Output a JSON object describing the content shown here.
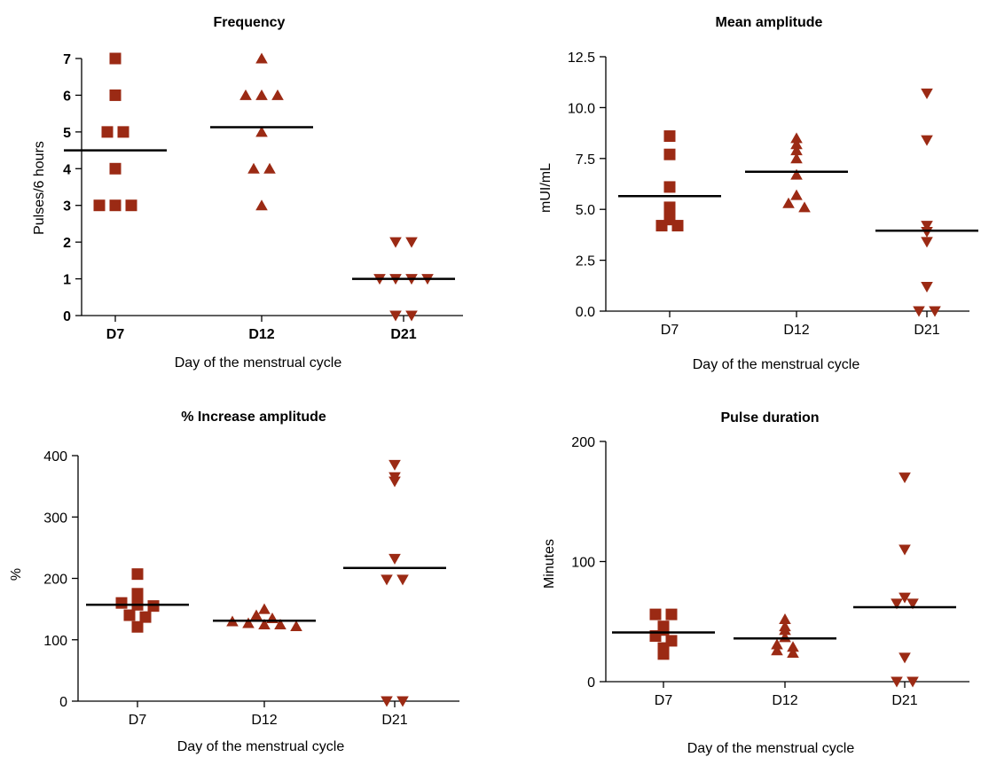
{
  "colors": {
    "marker": "#9b2a14",
    "axis": "#000000",
    "mean_line": "#000000"
  },
  "chart_data": [
    {
      "type": "scatter",
      "title": "Frequency",
      "xlabel": "Day of the menstrual cycle",
      "ylabel": "Pulses/6 hours",
      "categories": [
        "D7",
        "D12",
        "D21"
      ],
      "ylim": [
        0,
        7
      ],
      "yticks": [
        "0",
        "1",
        "2",
        "3",
        "4",
        "5",
        "6",
        "7"
      ],
      "bold_ticks": true,
      "series": [
        {
          "category": "D7",
          "marker": "square",
          "values": [
            7,
            6,
            5,
            5,
            4,
            3,
            3,
            3
          ],
          "mean": 4.5
        },
        {
          "category": "D12",
          "marker": "triangle-up",
          "values": [
            7,
            6,
            6,
            6,
            5,
            4,
            4,
            3
          ],
          "mean": 5.13
        },
        {
          "category": "D21",
          "marker": "triangle-down",
          "values": [
            2,
            2,
            1,
            1,
            1,
            1,
            0,
            0
          ],
          "mean": 1.0
        }
      ]
    },
    {
      "type": "scatter",
      "title": "Mean amplitude",
      "xlabel": "Day of the menstrual cycle",
      "ylabel": "mUI/mL",
      "categories": [
        "D7",
        "D12",
        "D21"
      ],
      "ylim": [
        0,
        12.5
      ],
      "yticks": [
        "0.0",
        "2.5",
        "5.0",
        "7.5",
        "10.0",
        "12.5"
      ],
      "bold_ticks": false,
      "series": [
        {
          "category": "D7",
          "marker": "square",
          "values": [
            8.6,
            7.7,
            6.1,
            5.1,
            4.9,
            4.5,
            4.2,
            4.2
          ],
          "mean": 5.65
        },
        {
          "category": "D12",
          "marker": "triangle-up",
          "values": [
            8.5,
            8.2,
            7.9,
            7.5,
            6.7,
            5.7,
            5.3,
            5.1
          ],
          "mean": 6.85
        },
        {
          "category": "D21",
          "marker": "triangle-down",
          "values": [
            10.7,
            8.4,
            4.2,
            3.9,
            3.4,
            1.2,
            0.0,
            0.0
          ],
          "mean": 3.95
        }
      ]
    },
    {
      "type": "scatter",
      "title": "% Increase amplitude",
      "xlabel": "Day of the menstrual cycle",
      "ylabel": "%",
      "categories": [
        "D7",
        "D12",
        "D21"
      ],
      "ylim": [
        0,
        400
      ],
      "yticks": [
        "0",
        "100",
        "200",
        "300",
        "400"
      ],
      "bold_ticks": false,
      "series": [
        {
          "category": "D7",
          "marker": "square",
          "values": [
            207,
            175,
            160,
            157,
            155,
            140,
            137,
            121
          ],
          "mean": 157
        },
        {
          "category": "D12",
          "marker": "triangle-up",
          "values": [
            150,
            140,
            135,
            130,
            127,
            125,
            125,
            122
          ],
          "mean": 131
        },
        {
          "category": "D21",
          "marker": "triangle-down",
          "values": [
            385,
            365,
            358,
            232,
            198,
            198,
            0,
            0
          ],
          "mean": 217
        }
      ]
    },
    {
      "type": "scatter",
      "title": "Pulse duration",
      "xlabel": "Day of the menstrual cycle",
      "ylabel": "Minutes",
      "categories": [
        "D7",
        "D12",
        "D21"
      ],
      "ylim": [
        0,
        200
      ],
      "yticks": [
        "0",
        "100",
        "200"
      ],
      "bold_ticks": false,
      "series": [
        {
          "category": "D7",
          "marker": "square",
          "values": [
            56,
            56,
            46,
            43,
            38,
            34,
            28,
            23
          ],
          "mean": 41
        },
        {
          "category": "D12",
          "marker": "triangle-up",
          "values": [
            52,
            46,
            43,
            37,
            31,
            29,
            26,
            24
          ],
          "mean": 36
        },
        {
          "category": "D21",
          "marker": "triangle-down",
          "values": [
            170,
            110,
            70,
            65,
            65,
            20,
            0,
            0
          ],
          "mean": 62
        }
      ]
    }
  ]
}
